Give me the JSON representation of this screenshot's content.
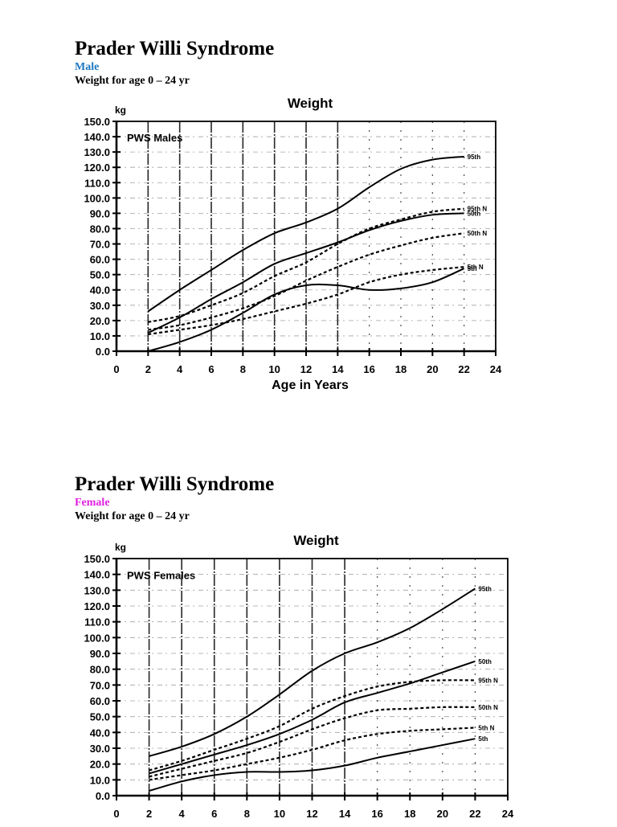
{
  "sections": [
    {
      "title": "Prader Willi Syndrome",
      "sex_label": "Male",
      "sex_color": "#1f78c1",
      "subtitle": "Weight for age 0 – 24 yr"
    },
    {
      "title": "Prader Willi Syndrome",
      "sex_label": "Female",
      "sex_color": "#e020e0",
      "subtitle": "Weight for age 0 – 24 yr"
    }
  ],
  "chart_data": [
    {
      "type": "line",
      "title": "Weight",
      "annotation": "PWS Males",
      "xlabel": "Age in Years",
      "ylabel": "kg",
      "xlim": [
        0,
        24
      ],
      "ylim": [
        0,
        150
      ],
      "x_ticks": [
        "0",
        "2",
        "4",
        "6",
        "8",
        "10",
        "12",
        "14",
        "16",
        "18",
        "20",
        "22",
        "24"
      ],
      "y_ticks": [
        "0.0",
        "10.0",
        "20.0",
        "30.0",
        "40.0",
        "50.0",
        "60.0",
        "70.0",
        "80.0",
        "90.0",
        "100.0",
        "110.0",
        "120.0",
        "130.0",
        "140.0",
        "150.0"
      ],
      "grid": true,
      "x": [
        2,
        4,
        6,
        8,
        10,
        12,
        14,
        16,
        18,
        20,
        22
      ],
      "series": [
        {
          "name": "95th",
          "style": "solid",
          "values": [
            26,
            40,
            53,
            66,
            77,
            84,
            93,
            107,
            119,
            125,
            127
          ]
        },
        {
          "name": "50th",
          "style": "solid",
          "values": [
            12,
            22,
            34,
            45,
            57,
            64,
            71,
            79,
            85,
            89,
            90
          ]
        },
        {
          "name": "5th",
          "style": "solid",
          "values": [
            0,
            6,
            14,
            25,
            37,
            43,
            43,
            40,
            41,
            45,
            54
          ]
        },
        {
          "name": "95th N",
          "style": "dashed",
          "values": [
            19,
            23,
            30,
            38,
            49,
            58,
            70,
            80,
            86,
            91,
            93
          ]
        },
        {
          "name": "50th N",
          "style": "dashed",
          "values": [
            14,
            17,
            22,
            28,
            36,
            46,
            55,
            63,
            69,
            74,
            77
          ]
        },
        {
          "name": "5th N",
          "style": "dashed",
          "values": [
            11,
            14,
            17,
            21,
            26,
            31,
            37,
            45,
            50,
            53,
            55
          ]
        }
      ]
    },
    {
      "type": "line",
      "title": "Weight",
      "annotation": "PWS Females",
      "xlabel": "Age in Years",
      "ylabel": "kg",
      "xlim": [
        0,
        24
      ],
      "ylim": [
        0,
        150
      ],
      "x_ticks": [
        "0",
        "2",
        "4",
        "6",
        "8",
        "10",
        "12",
        "14",
        "16",
        "18",
        "20",
        "22",
        "24"
      ],
      "y_ticks": [
        "0.0",
        "10.0",
        "20.0",
        "30.0",
        "40.0",
        "50.0",
        "60.0",
        "70.0",
        "80.0",
        "90.0",
        "100.0",
        "110.0",
        "120.0",
        "130.0",
        "140.0",
        "150.0"
      ],
      "grid": true,
      "x": [
        2,
        4,
        6,
        8,
        10,
        12,
        14,
        16,
        18,
        20,
        22
      ],
      "series": [
        {
          "name": "95th",
          "style": "solid",
          "values": [
            25,
            31,
            39,
            50,
            64,
            79,
            90,
            97,
            106,
            118,
            131
          ]
        },
        {
          "name": "50th",
          "style": "solid",
          "values": [
            14,
            20,
            26,
            32,
            39,
            48,
            59,
            65,
            71,
            78,
            85
          ]
        },
        {
          "name": "5th",
          "style": "solid",
          "values": [
            3,
            9,
            13,
            15,
            15,
            16,
            19,
            24,
            28,
            32,
            36
          ]
        },
        {
          "name": "95th N",
          "style": "dashed",
          "values": [
            16,
            22,
            29,
            36,
            44,
            55,
            63,
            69,
            72,
            73,
            73
          ]
        },
        {
          "name": "50th N",
          "style": "dashed",
          "values": [
            12,
            17,
            22,
            27,
            34,
            42,
            49,
            54,
            55,
            56,
            56
          ]
        },
        {
          "name": "5th N",
          "style": "dashed",
          "values": [
            10,
            13,
            16,
            20,
            24,
            29,
            35,
            39,
            41,
            42,
            43
          ]
        }
      ]
    }
  ]
}
